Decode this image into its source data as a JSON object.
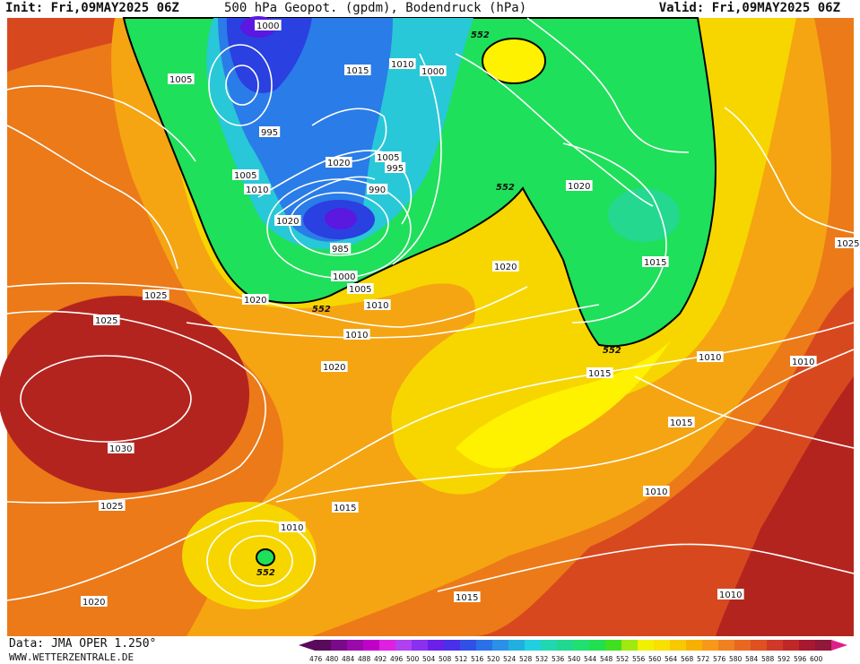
{
  "header": {
    "init": "Init: Fri,09MAY2025 06Z",
    "title": "500 hPa Geopot. (gpdm), Bodendruck (hPa)",
    "valid": "Valid: Fri,09MAY2025 06Z"
  },
  "footer": {
    "data_source": "Data: JMA OPER 1.250°",
    "website": "WWW.WETTERZENTRALE.DE"
  },
  "colors": {
    "deep_red": "#b4241e",
    "red_orange": "#d8481e",
    "orange": "#ec7a18",
    "orange_yellow": "#f5a512",
    "yellow": "#f7d600",
    "bright_yellow": "#fff200",
    "green": "#1ee05a",
    "teal_green": "#24d890",
    "cyan": "#28c8d8",
    "blue": "#2a7ce8",
    "deep_blue": "#2a40e0",
    "violet": "#5a18e0",
    "contour_white": "#ffffff",
    "contour_552": "#000000"
  },
  "colorbar": {
    "ticks": [
      "476",
      "480",
      "484",
      "488",
      "492",
      "496",
      "500",
      "504",
      "508",
      "512",
      "516",
      "520",
      "524",
      "528",
      "532",
      "536",
      "540",
      "544",
      "548",
      "552",
      "556",
      "560",
      "564",
      "568",
      "572",
      "576",
      "580",
      "584",
      "588",
      "592",
      "596",
      "600"
    ],
    "colors": [
      "#5a0a5a",
      "#7a0a8a",
      "#9a0aaa",
      "#c000c8",
      "#e020e0",
      "#b040f0",
      "#8a30f0",
      "#6a20e8",
      "#4a30e8",
      "#3050e8",
      "#2a70e8",
      "#2a90e8",
      "#20b0e0",
      "#20d0e0",
      "#20d8b0",
      "#20d890",
      "#20e070",
      "#20e050",
      "#40e020",
      "#a0e810",
      "#f0f000",
      "#f8e000",
      "#f8c800",
      "#f8b000",
      "#f89818",
      "#f08020",
      "#e86820",
      "#e05020",
      "#d03828",
      "#c02828",
      "#a81830",
      "#901838"
    ],
    "left_arrow_color": "#5a0a5a",
    "right_arrow_color": "#e0208a"
  },
  "map": {
    "isobar_labels": [
      "1000",
      "1005",
      "995",
      "1015",
      "1010",
      "1000",
      "1005",
      "1010",
      "1020",
      "1005",
      "995",
      "990",
      "1020",
      "985",
      "1000",
      "1005",
      "1010",
      "1020",
      "1015",
      "1020",
      "1025",
      "1025",
      "1030",
      "1025",
      "1020",
      "1015",
      "1010",
      "1020",
      "1020",
      "1015",
      "1010",
      "1015",
      "1010",
      "1015",
      "1010",
      "1010",
      "1010",
      "1025"
    ],
    "geopot_552_labels": [
      "552",
      "552",
      "552",
      "552",
      "552"
    ]
  }
}
